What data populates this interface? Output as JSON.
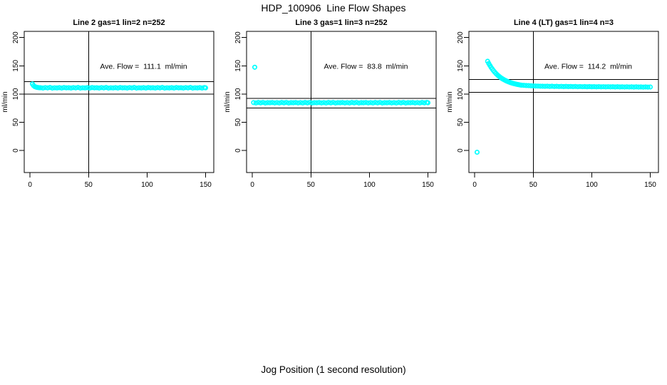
{
  "figure": {
    "title": "HDP_100906  Line Flow Shapes",
    "x_axis_label": "Jog Position (1 second resolution)",
    "background": "#FFFFFF"
  },
  "colors": {
    "points": "#00FFFF",
    "axis": "#000000",
    "text": "#000000"
  },
  "chart_data": [
    {
      "type": "scatter",
      "title": "Line 2 gas=1 lin=2 n=252",
      "n": 252,
      "ave_flow_ml_min": 111.1,
      "annotation": "Ave. Flow =  111.1  ml/min",
      "annotation_xy": [
        97,
        145
      ],
      "ylabel": "ml/min",
      "xlim": [
        -5,
        157
      ],
      "ylim": [
        -39,
        211
      ],
      "x_ticks": [
        0,
        50,
        100,
        150
      ],
      "y_ticks": [
        0,
        50,
        100,
        150,
        200
      ],
      "hlines": [
        122.2,
        100.0
      ],
      "vlines": [
        50
      ],
      "marker": "open-circle",
      "points": [
        [
          2,
          117.8
        ],
        [
          3,
          114.9
        ],
        [
          4,
          113.2
        ],
        [
          5,
          112.4
        ],
        [
          6,
          111.8
        ],
        [
          7,
          111.5
        ],
        [
          8,
          111.2
        ],
        [
          9,
          111.2
        ],
        [
          11,
          110.7
        ],
        [
          13,
          111.4
        ],
        [
          15,
          110.9
        ],
        [
          17,
          111.6
        ],
        [
          19,
          110.6
        ],
        [
          21,
          111.1
        ],
        [
          23,
          110.8
        ],
        [
          25,
          111.3
        ],
        [
          27,
          110.7
        ],
        [
          29,
          111.5
        ],
        [
          31,
          111.0
        ],
        [
          33,
          111.2
        ],
        [
          35,
          110.7
        ],
        [
          37,
          111.4
        ],
        [
          39,
          110.9
        ],
        [
          41,
          111.6
        ],
        [
          43,
          110.6
        ],
        [
          45,
          111.1
        ],
        [
          47,
          110.8
        ],
        [
          49,
          111.3
        ],
        [
          51,
          110.7
        ],
        [
          53,
          111.5
        ],
        [
          55,
          111.0
        ],
        [
          57,
          111.2
        ],
        [
          59,
          110.7
        ],
        [
          61,
          111.4
        ],
        [
          63,
          110.9
        ],
        [
          65,
          111.6
        ],
        [
          67,
          110.6
        ],
        [
          69,
          111.1
        ],
        [
          71,
          110.8
        ],
        [
          73,
          111.3
        ],
        [
          75,
          110.7
        ],
        [
          77,
          111.5
        ],
        [
          79,
          111.0
        ],
        [
          81,
          111.2
        ],
        [
          83,
          110.7
        ],
        [
          85,
          111.4
        ],
        [
          87,
          110.9
        ],
        [
          89,
          111.6
        ],
        [
          91,
          110.6
        ],
        [
          93,
          111.1
        ],
        [
          95,
          110.8
        ],
        [
          97,
          111.3
        ],
        [
          99,
          110.7
        ],
        [
          101,
          111.5
        ],
        [
          103,
          111.0
        ],
        [
          105,
          111.2
        ],
        [
          107,
          110.7
        ],
        [
          109,
          111.4
        ],
        [
          111,
          110.9
        ],
        [
          113,
          111.6
        ],
        [
          115,
          110.6
        ],
        [
          117,
          111.1
        ],
        [
          119,
          110.8
        ],
        [
          121,
          111.3
        ],
        [
          123,
          110.7
        ],
        [
          125,
          111.5
        ],
        [
          127,
          111.0
        ],
        [
          129,
          111.2
        ],
        [
          131,
          110.7
        ],
        [
          133,
          111.4
        ],
        [
          135,
          110.9
        ],
        [
          137,
          111.6
        ],
        [
          139,
          110.6
        ],
        [
          141,
          111.1
        ],
        [
          143,
          110.8
        ],
        [
          145,
          111.3
        ],
        [
          147,
          110.7
        ],
        [
          149,
          111.5
        ],
        [
          150,
          111.0
        ]
      ]
    },
    {
      "type": "scatter",
      "title": "Line 3 gas=1 lin=3 n=252",
      "n": 252,
      "ave_flow_ml_min": 83.8,
      "annotation": "Ave. Flow =  83.8  ml/min",
      "annotation_xy": [
        97,
        145
      ],
      "ylabel": "ml/min",
      "xlim": [
        -5,
        157
      ],
      "ylim": [
        -39,
        211
      ],
      "x_ticks": [
        0,
        50,
        100,
        150
      ],
      "y_ticks": [
        0,
        50,
        100,
        150,
        200
      ],
      "hlines": [
        92.2,
        75.4
      ],
      "vlines": [
        50
      ],
      "marker": "open-circle",
      "points": [
        [
          2,
          147.5
        ],
        [
          1,
          84.9
        ],
        [
          3,
          84.3
        ],
        [
          5,
          85.1
        ],
        [
          7,
          84.5
        ],
        [
          9,
          85.2
        ],
        [
          11,
          84.2
        ],
        [
          13,
          84.8
        ],
        [
          15,
          84.6
        ],
        [
          17,
          85.0
        ],
        [
          19,
          84.4
        ],
        [
          21,
          84.9
        ],
        [
          23,
          84.3
        ],
        [
          25,
          85.1
        ],
        [
          27,
          84.5
        ],
        [
          29,
          85.2
        ],
        [
          31,
          84.2
        ],
        [
          33,
          84.8
        ],
        [
          35,
          84.6
        ],
        [
          37,
          85.0
        ],
        [
          39,
          84.4
        ],
        [
          41,
          84.9
        ],
        [
          43,
          84.3
        ],
        [
          45,
          85.1
        ],
        [
          47,
          84.5
        ],
        [
          49,
          85.2
        ],
        [
          51,
          84.2
        ],
        [
          53,
          84.8
        ],
        [
          55,
          84.6
        ],
        [
          57,
          85.0
        ],
        [
          59,
          84.4
        ],
        [
          61,
          84.9
        ],
        [
          63,
          84.3
        ],
        [
          65,
          85.1
        ],
        [
          67,
          84.5
        ],
        [
          69,
          85.2
        ],
        [
          71,
          84.2
        ],
        [
          73,
          84.8
        ],
        [
          75,
          84.6
        ],
        [
          77,
          85.0
        ],
        [
          79,
          84.4
        ],
        [
          81,
          84.9
        ],
        [
          83,
          84.3
        ],
        [
          85,
          85.1
        ],
        [
          87,
          84.5
        ],
        [
          89,
          85.2
        ],
        [
          91,
          84.2
        ],
        [
          93,
          84.8
        ],
        [
          95,
          84.6
        ],
        [
          97,
          85.0
        ],
        [
          99,
          84.4
        ],
        [
          101,
          84.9
        ],
        [
          103,
          84.3
        ],
        [
          105,
          85.1
        ],
        [
          107,
          84.5
        ],
        [
          109,
          85.2
        ],
        [
          111,
          84.2
        ],
        [
          113,
          84.8
        ],
        [
          115,
          84.6
        ],
        [
          117,
          85.0
        ],
        [
          119,
          84.4
        ],
        [
          121,
          84.9
        ],
        [
          123,
          84.3
        ],
        [
          125,
          85.1
        ],
        [
          127,
          84.5
        ],
        [
          129,
          85.2
        ],
        [
          131,
          84.2
        ],
        [
          133,
          84.8
        ],
        [
          135,
          84.6
        ],
        [
          137,
          85.0
        ],
        [
          139,
          84.4
        ],
        [
          141,
          84.9
        ],
        [
          143,
          84.3
        ],
        [
          145,
          85.1
        ],
        [
          147,
          84.5
        ],
        [
          149,
          85.2
        ],
        [
          150,
          84.6
        ]
      ]
    },
    {
      "type": "scatter",
      "title": "Line 4 (LT) gas=1 lin=4 n=3",
      "n": 3,
      "ave_flow_ml_min": 114.2,
      "annotation": "Ave. Flow =  114.2  ml/min",
      "annotation_xy": [
        97,
        145
      ],
      "ylabel": "ml/min",
      "xlim": [
        -5,
        157
      ],
      "ylim": [
        -39,
        211
      ],
      "x_ticks": [
        0,
        50,
        100,
        150
      ],
      "y_ticks": [
        0,
        50,
        100,
        150,
        200
      ],
      "hlines": [
        125.6,
        102.8
      ],
      "vlines": [
        50
      ],
      "marker": "open-circle",
      "points": [
        [
          2,
          -3.0
        ],
        [
          11,
          158.0
        ],
        [
          12,
          154.1
        ],
        [
          13,
          150.5
        ],
        [
          14,
          147.2
        ],
        [
          15,
          144.2
        ],
        [
          16,
          141.5
        ],
        [
          17,
          139.0
        ],
        [
          18,
          136.7
        ],
        [
          19,
          134.6
        ],
        [
          20,
          132.7
        ],
        [
          21,
          131.0
        ],
        [
          22,
          129.4
        ],
        [
          23,
          127.9
        ],
        [
          24,
          126.6
        ],
        [
          25,
          125.4
        ],
        [
          26,
          124.3
        ],
        [
          27,
          123.3
        ],
        [
          28,
          122.3
        ],
        [
          29,
          121.5
        ],
        [
          30,
          120.7
        ],
        [
          31,
          120.0
        ],
        [
          32,
          119.3
        ],
        [
          33,
          118.7
        ],
        [
          34,
          118.2
        ],
        [
          35,
          117.7
        ],
        [
          36,
          117.2
        ],
        [
          37,
          116.8
        ],
        [
          38,
          116.4
        ],
        [
          39,
          116.0
        ],
        [
          40,
          115.7
        ],
        [
          42,
          115.4
        ],
        [
          44,
          115.1
        ],
        [
          46,
          114.9
        ],
        [
          48,
          114.6
        ],
        [
          50,
          114.4
        ],
        [
          52,
          114.2
        ],
        [
          54,
          114.1
        ],
        [
          56,
          113.9
        ],
        [
          58,
          113.8
        ],
        [
          60,
          113.7
        ],
        [
          62,
          113.9
        ],
        [
          64,
          113.5
        ],
        [
          66,
          113.8
        ],
        [
          68,
          113.4
        ],
        [
          70,
          113.7
        ],
        [
          72,
          113.3
        ],
        [
          74,
          113.6
        ],
        [
          76,
          113.2
        ],
        [
          78,
          113.5
        ],
        [
          80,
          113.2
        ],
        [
          82,
          113.4
        ],
        [
          84,
          113.1
        ],
        [
          86,
          113.4
        ],
        [
          88,
          113.0
        ],
        [
          90,
          113.3
        ],
        [
          92,
          113.0
        ],
        [
          94,
          113.2
        ],
        [
          96,
          112.9
        ],
        [
          98,
          113.2
        ],
        [
          100,
          112.9
        ],
        [
          102,
          113.1
        ],
        [
          104,
          112.8
        ],
        [
          106,
          113.1
        ],
        [
          108,
          112.8
        ],
        [
          110,
          113.0
        ],
        [
          112,
          112.7
        ],
        [
          114,
          113.0
        ],
        [
          116,
          112.7
        ],
        [
          118,
          112.9
        ],
        [
          120,
          112.6
        ],
        [
          122,
          112.9
        ],
        [
          124,
          112.6
        ],
        [
          126,
          112.8
        ],
        [
          128,
          112.5
        ],
        [
          130,
          112.8
        ],
        [
          132,
          112.5
        ],
        [
          134,
          112.7
        ],
        [
          136,
          112.4
        ],
        [
          138,
          112.7
        ],
        [
          140,
          112.4
        ],
        [
          142,
          112.6
        ],
        [
          144,
          112.3
        ],
        [
          146,
          112.6
        ],
        [
          148,
          112.3
        ],
        [
          150,
          112.5
        ]
      ]
    }
  ]
}
